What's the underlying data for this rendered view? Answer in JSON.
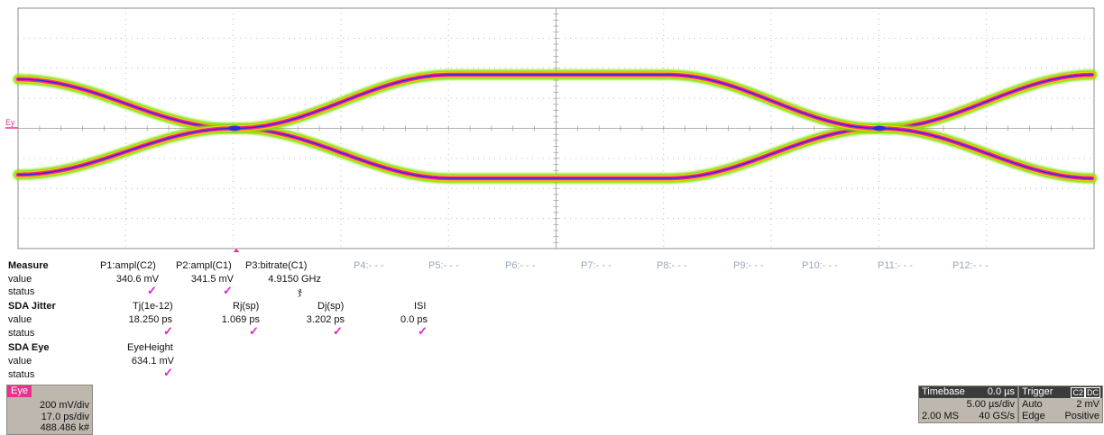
{
  "waveform": {
    "trace_label": "Ey",
    "colors": {
      "grid": "#a8a8a8",
      "outer": "#7ee000",
      "mid": "#f0d000",
      "inner": "#ff2090",
      "core": "#2030e0",
      "marker": "#e8318c"
    }
  },
  "measure": {
    "headers": [
      "Measure",
      "SDA Jitter",
      "SDA Eye"
    ],
    "row_label_value": "value",
    "row_label_status": "status",
    "params": [
      {
        "label": "P1:ampl(C2)",
        "value": "340.6 mV",
        "status": "✓"
      },
      {
        "label": "P2:ampl(C1)",
        "value": "341.5 mV",
        "status": "✓"
      },
      {
        "label": "P3:bitrate(C1)",
        "value": "4.9150 GHz",
        "status": "ჯ"
      }
    ],
    "inactive": [
      "P4:- - -",
      "P5:- - -",
      "P6:- - -",
      "P7:- - -",
      "P8:- - -",
      "P9:- - -",
      "P10:- - -",
      "P11:- - -",
      "P12:- - -"
    ],
    "jitter": [
      {
        "label": "Tj(1e-12)",
        "value": "18.250 ps",
        "status": "✓"
      },
      {
        "label": "Rj(sp)",
        "value": "1.069 ps",
        "status": "✓"
      },
      {
        "label": "Dj(sp)",
        "value": "3.202 ps",
        "status": "✓"
      },
      {
        "label": "ISI",
        "value": "0.0 ps",
        "status": "✓"
      }
    ],
    "eye": {
      "label": "EyeHeight",
      "value": "634.1 mV",
      "status": "✓"
    }
  },
  "eye_box": {
    "tag": "Eye",
    "vdiv": "200 mV/div",
    "hdiv": "17.0 ps/div",
    "count": "488.486 k#"
  },
  "timebase": {
    "title": "Timebase",
    "delay": "0.0 µs",
    "per_div": "5.00 µs/div",
    "samples": "2.00 MS",
    "rate": "40 GS/s"
  },
  "trigger": {
    "title": "Trigger",
    "ch": "C2",
    "coupling": "DC",
    "mode": "Auto",
    "level": "2 mV",
    "type": "Edge",
    "slope": "Positive"
  }
}
